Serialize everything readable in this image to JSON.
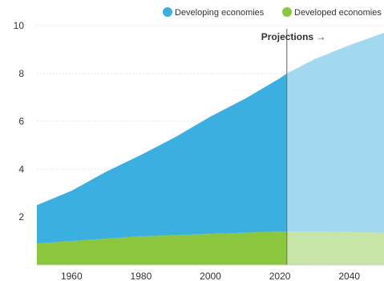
{
  "chart_data": {
    "type": "area",
    "stacked": true,
    "title": "",
    "xlabel": "",
    "ylabel": "",
    "xlim": [
      1950,
      2050
    ],
    "ylim": [
      0,
      10
    ],
    "x_ticks": [
      1960,
      1980,
      2000,
      2020,
      2040
    ],
    "y_ticks": [
      2,
      4,
      6,
      8,
      10
    ],
    "grid": "horizontal",
    "legend": "top-right",
    "annotation": {
      "text": "Projections →",
      "x": 2022
    },
    "x": [
      1950,
      1960,
      1970,
      1980,
      1990,
      2000,
      2010,
      2020,
      2022,
      2030,
      2040,
      2050
    ],
    "series": [
      {
        "name": "Developed economies",
        "color": "#8cc63f",
        "projected_color": "#c7e5a6",
        "values": [
          0.9,
          1.0,
          1.1,
          1.2,
          1.25,
          1.3,
          1.35,
          1.4,
          1.4,
          1.4,
          1.38,
          1.35
        ]
      },
      {
        "name": "Developing economies",
        "color": "#3bb0e0",
        "projected_color": "#a3d8f1",
        "values": [
          1.6,
          2.1,
          2.8,
          3.4,
          4.1,
          4.9,
          5.6,
          6.4,
          6.6,
          7.2,
          7.8,
          8.35
        ]
      }
    ]
  }
}
